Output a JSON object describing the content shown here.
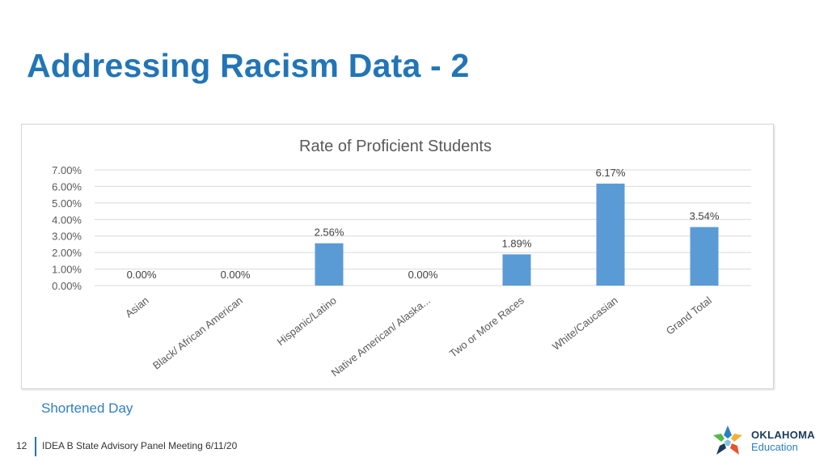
{
  "slide": {
    "title": "Addressing Racism Data - 2",
    "caption": "Shortened Day",
    "page_number": "12",
    "footer_text": "IDEA B State Advisory Panel Meeting 6/11/20"
  },
  "logo": {
    "line1": "OKLAHOMA",
    "line2": "Education"
  },
  "colors": {
    "title": "#2275b6",
    "bar": "#5b9bd5",
    "grid": "#d9d9d9"
  },
  "chart_data": {
    "type": "bar",
    "title": "Rate of Proficient Students",
    "categories": [
      "Asian",
      "Black/ African American",
      "Hispanic/Latino",
      "Native American/ Alaska...",
      "Two or More Races",
      "White/Caucasian",
      "Grand Total"
    ],
    "values": [
      0.0,
      0.0,
      2.56,
      0.0,
      1.89,
      6.17,
      3.54
    ],
    "data_labels": [
      "0.00%",
      "0.00%",
      "2.56%",
      "0.00%",
      "1.89%",
      "6.17%",
      "3.54%"
    ],
    "y_ticks": [
      "0.00%",
      "1.00%",
      "2.00%",
      "3.00%",
      "4.00%",
      "5.00%",
      "6.00%",
      "7.00%"
    ],
    "ylim": [
      0,
      7
    ],
    "xlabel": "",
    "ylabel": "",
    "grid": true,
    "legend": "none"
  }
}
